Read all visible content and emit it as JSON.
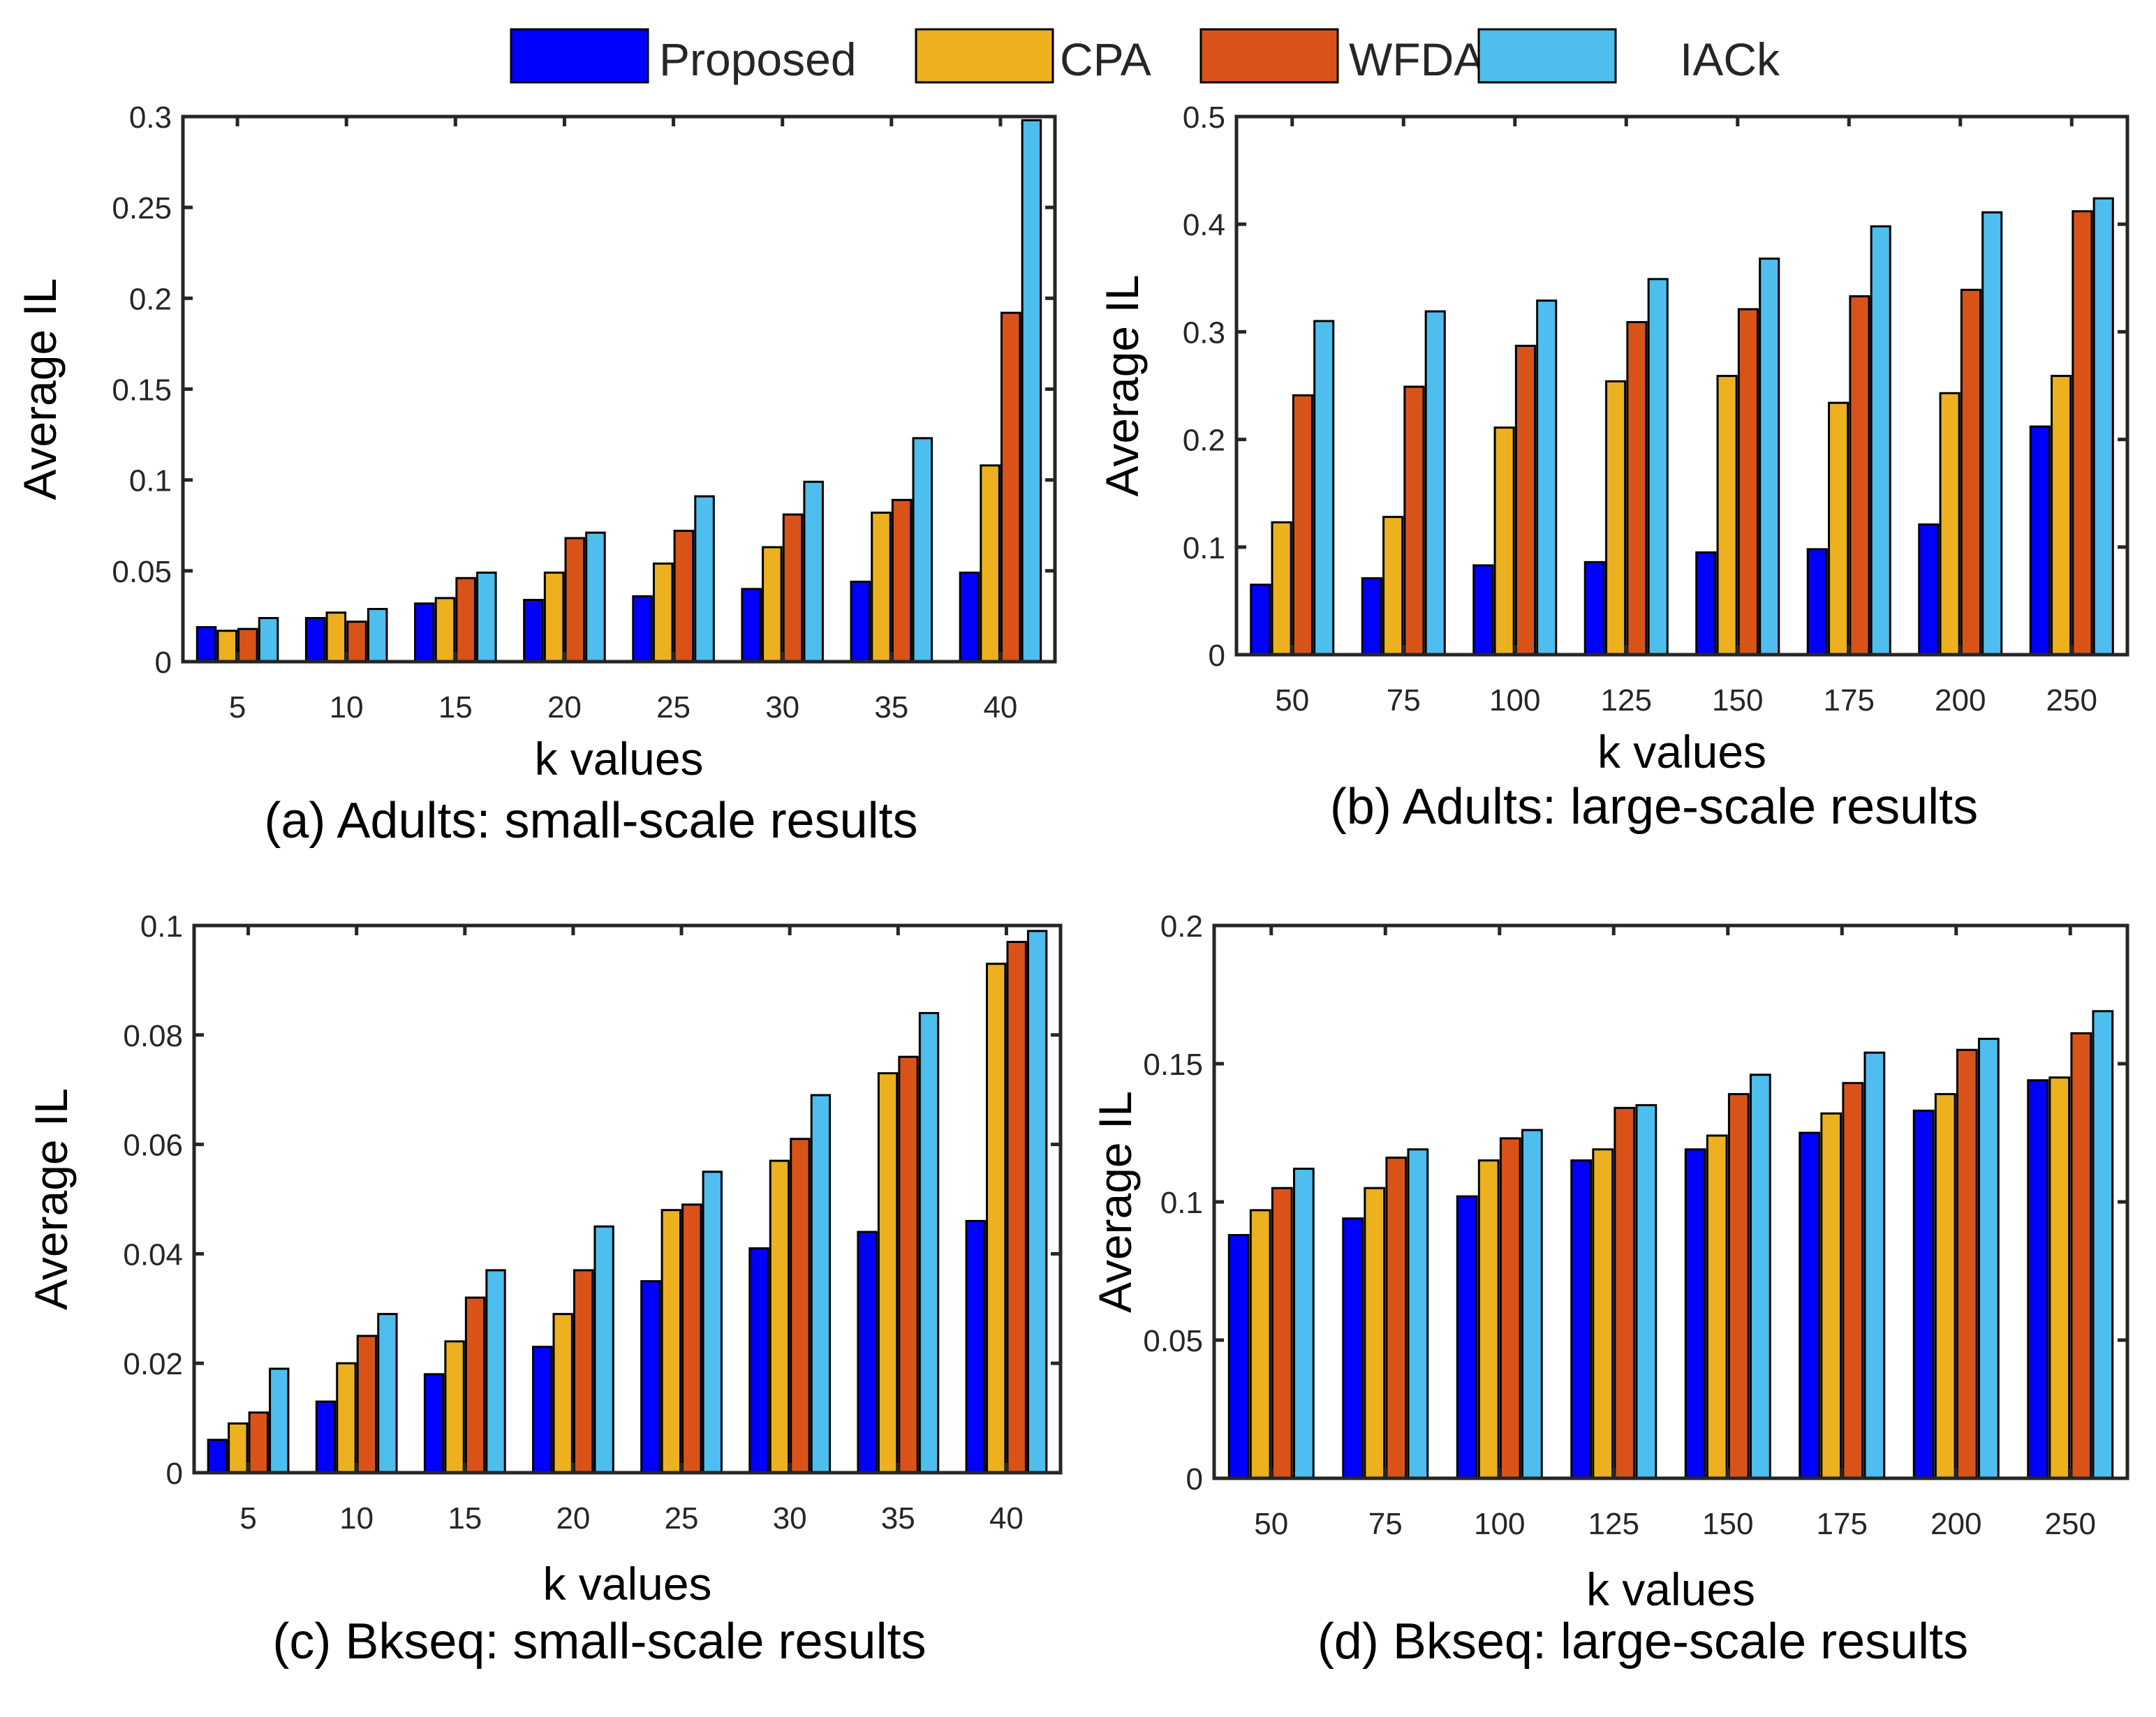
{
  "legend": {
    "entries": [
      {
        "name": "Proposed",
        "color": "#0000FF"
      },
      {
        "name": "CPA",
        "color": "#EDB120"
      },
      {
        "name": "WFDA",
        "color": "#D95319"
      },
      {
        "name": "IACk",
        "color": "#4DBEEE"
      }
    ],
    "placement": "top-center"
  },
  "chart_data": [
    {
      "type": "bar",
      "caption": "(a) Adults: small-scale results",
      "xlabel": "k values",
      "ylabel": "Average IL",
      "categories": [
        "5",
        "10",
        "15",
        "20",
        "25",
        "30",
        "35",
        "40"
      ],
      "ylim": [
        0,
        0.3
      ],
      "yticks": [
        0,
        0.05,
        0.1,
        0.15,
        0.2,
        0.25,
        0.3
      ],
      "ytick_labels": [
        "0",
        "0.05",
        "0.1",
        "0.15",
        "0.2",
        "0.25",
        "0.3"
      ],
      "grid": false,
      "series": [
        {
          "name": "Proposed",
          "values": [
            0.019,
            0.024,
            0.032,
            0.034,
            0.036,
            0.04,
            0.044,
            0.049
          ]
        },
        {
          "name": "CPA",
          "values": [
            0.017,
            0.027,
            0.035,
            0.049,
            0.054,
            0.063,
            0.082,
            0.108
          ]
        },
        {
          "name": "WFDA",
          "values": [
            0.018,
            0.022,
            0.046,
            0.068,
            0.072,
            0.081,
            0.089,
            0.192
          ]
        },
        {
          "name": "IACk",
          "values": [
            0.024,
            0.029,
            0.049,
            0.071,
            0.091,
            0.099,
            0.123,
            0.298
          ]
        }
      ]
    },
    {
      "type": "bar",
      "caption": "(b) Adults: large-scale results",
      "xlabel": "k values",
      "ylabel": "Average IL",
      "categories": [
        "50",
        "75",
        "100",
        "125",
        "150",
        "175",
        "200",
        "250"
      ],
      "ylim": [
        0,
        0.5
      ],
      "yticks": [
        0,
        0.1,
        0.2,
        0.3,
        0.4,
        0.5
      ],
      "ytick_labels": [
        "0",
        "0.1",
        "0.2",
        "0.3",
        "0.4",
        "0.5"
      ],
      "grid": false,
      "series": [
        {
          "name": "Proposed",
          "values": [
            0.065,
            0.071,
            0.083,
            0.086,
            0.095,
            0.098,
            0.121,
            0.212
          ]
        },
        {
          "name": "CPA",
          "values": [
            0.123,
            0.128,
            0.211,
            0.254,
            0.259,
            0.234,
            0.243,
            0.259
          ]
        },
        {
          "name": "WFDA",
          "values": [
            0.241,
            0.249,
            0.287,
            0.309,
            0.321,
            0.333,
            0.339,
            0.412
          ]
        },
        {
          "name": "IACk",
          "values": [
            0.31,
            0.319,
            0.329,
            0.349,
            0.368,
            0.398,
            0.411,
            0.424
          ]
        }
      ]
    },
    {
      "type": "bar",
      "caption": "(c) Bkseq: small-scale results",
      "xlabel": "k values",
      "ylabel": "Average IL",
      "categories": [
        "5",
        "10",
        "15",
        "20",
        "25",
        "30",
        "35",
        "40"
      ],
      "ylim": [
        0,
        0.1
      ],
      "yticks": [
        0,
        0.02,
        0.04,
        0.06,
        0.08,
        0.1
      ],
      "ytick_labels": [
        "0",
        "0.02",
        "0.04",
        "0.06",
        "0.08",
        "0.1"
      ],
      "grid": false,
      "series": [
        {
          "name": "Proposed",
          "values": [
            0.006,
            0.013,
            0.018,
            0.023,
            0.035,
            0.041,
            0.044,
            0.046
          ]
        },
        {
          "name": "CPA",
          "values": [
            0.009,
            0.02,
            0.024,
            0.029,
            0.048,
            0.057,
            0.073,
            0.093
          ]
        },
        {
          "name": "WFDA",
          "values": [
            0.011,
            0.025,
            0.032,
            0.037,
            0.049,
            0.061,
            0.076,
            0.097
          ]
        },
        {
          "name": "IACk",
          "values": [
            0.019,
            0.029,
            0.037,
            0.045,
            0.055,
            0.069,
            0.084,
            0.099
          ]
        }
      ]
    },
    {
      "type": "bar",
      "caption": "(d) Bkseq: large-scale results",
      "xlabel": "k values",
      "ylabel": "Average IL",
      "categories": [
        "50",
        "75",
        "100",
        "125",
        "150",
        "175",
        "200",
        "250"
      ],
      "ylim": [
        0,
        0.2
      ],
      "yticks": [
        0,
        0.05,
        0.1,
        0.15,
        0.2
      ],
      "ytick_labels": [
        "0",
        "0.05",
        "0.1",
        "0.15",
        "0.2"
      ],
      "grid": false,
      "series": [
        {
          "name": "Proposed",
          "values": [
            0.088,
            0.094,
            0.102,
            0.115,
            0.119,
            0.125,
            0.133,
            0.144
          ]
        },
        {
          "name": "CPA",
          "values": [
            0.097,
            0.105,
            0.115,
            0.119,
            0.124,
            0.132,
            0.139,
            0.145
          ]
        },
        {
          "name": "WFDA",
          "values": [
            0.105,
            0.116,
            0.123,
            0.134,
            0.139,
            0.143,
            0.155,
            0.161
          ]
        },
        {
          "name": "IACk",
          "values": [
            0.112,
            0.119,
            0.126,
            0.135,
            0.146,
            0.154,
            0.159,
            0.169
          ]
        }
      ]
    }
  ]
}
